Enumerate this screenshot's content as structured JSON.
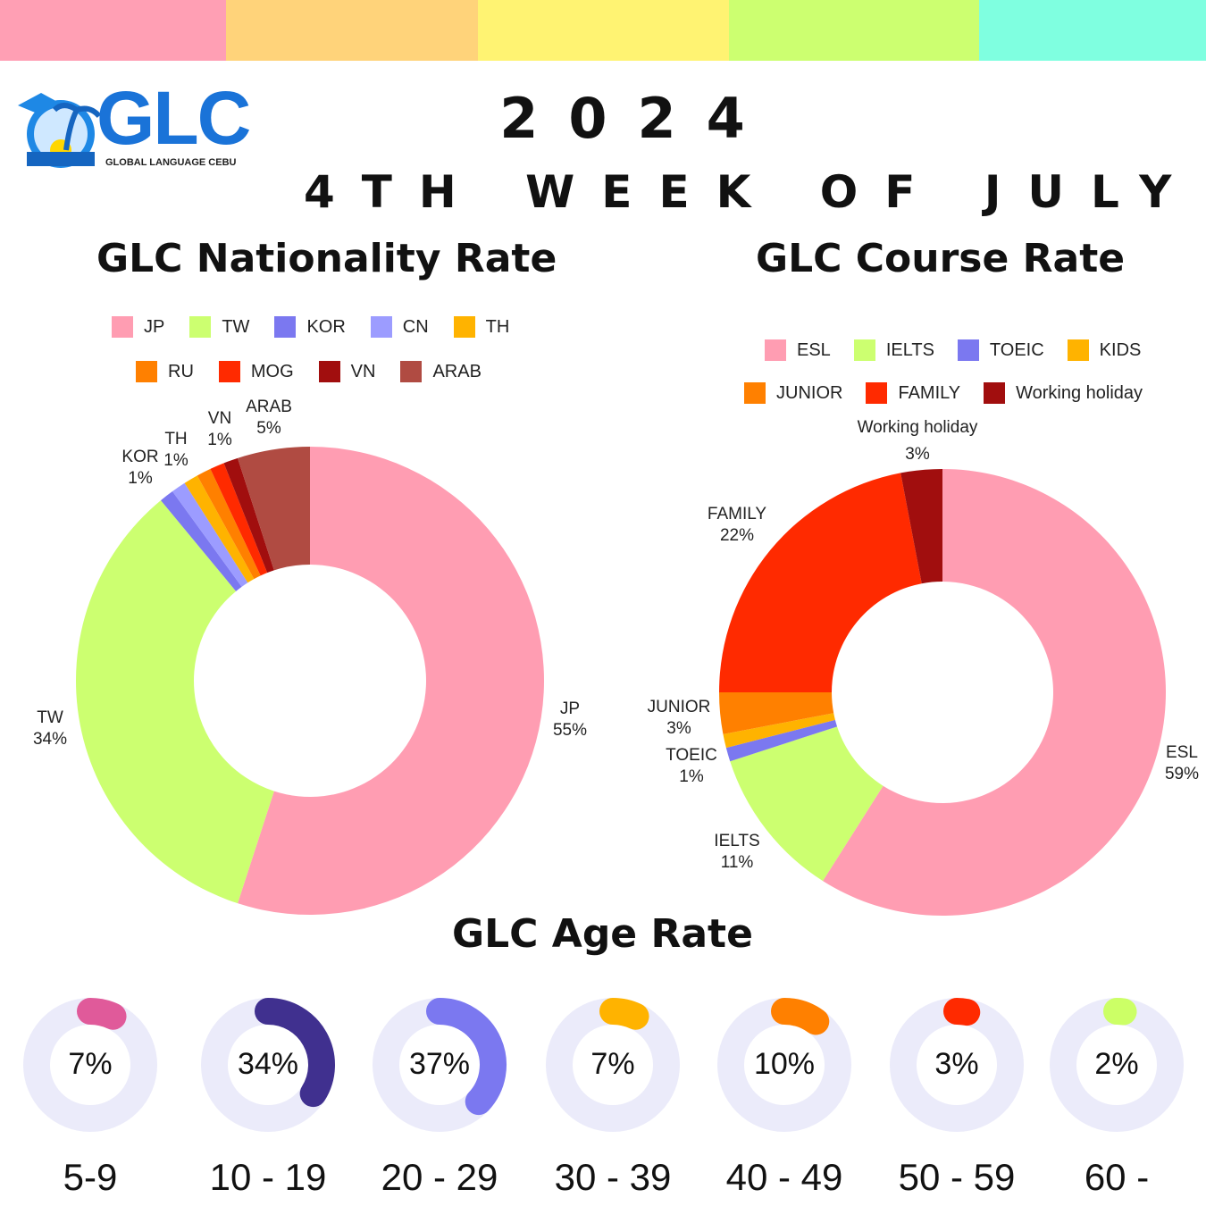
{
  "header": {
    "year": "2024",
    "week": "4TH WEEK OF JULY",
    "logo_text": "GLC",
    "logo_sub": "GLOBAL LANGUAGE CEBU"
  },
  "colors": {
    "top_bar": [
      "#ff9fb4",
      "#ffd37a",
      "#fff372",
      "#ccff70",
      "#7fffe0"
    ],
    "age_track": "#ebebfa"
  },
  "chart_data": [
    {
      "type": "pie",
      "title": "GLC Nationality Rate",
      "donut": true,
      "categories": [
        "JP",
        "TW",
        "KOR",
        "CN",
        "TH",
        "RU",
        "MOG",
        "VN",
        "ARAB"
      ],
      "values": [
        55,
        34,
        1,
        1,
        1,
        1,
        1,
        1,
        5
      ],
      "colors": [
        "#ff9db2",
        "#ccff70",
        "#7b78f0",
        "#9c9cff",
        "#ffb300",
        "#ff8000",
        "#ff2a00",
        "#a10e0e",
        "#b04b42"
      ],
      "labels": [
        {
          "name": "JP",
          "value": "55%"
        },
        {
          "name": "TW",
          "value": "34%"
        },
        {
          "name": "KOR",
          "value": "1%"
        },
        {
          "name": "TH",
          "value": "1%"
        },
        {
          "name": "VN",
          "value": "1%"
        },
        {
          "name": "ARAB",
          "value": "5%"
        }
      ],
      "legend": "top"
    },
    {
      "type": "pie",
      "title": "GLC Course Rate",
      "donut": true,
      "categories": [
        "ESL",
        "IELTS",
        "TOEIC",
        "KIDS",
        "JUNIOR",
        "FAMILY",
        "Working holiday"
      ],
      "values": [
        59,
        11,
        1,
        1,
        3,
        22,
        3
      ],
      "colors": [
        "#ff9db2",
        "#ccff70",
        "#7b78f0",
        "#ffb300",
        "#ff8000",
        "#ff2a00",
        "#a10e0e"
      ],
      "labels": [
        {
          "name": "ESL",
          "value": "59%"
        },
        {
          "name": "IELTS",
          "value": "11%"
        },
        {
          "name": "TOEIC",
          "value": "1%"
        },
        {
          "name": "JUNIOR",
          "value": "3%"
        },
        {
          "name": "FAMILY",
          "value": "22%"
        },
        {
          "name": "Working holiday",
          "value": "3%"
        }
      ],
      "legend": "top"
    },
    {
      "type": "pie",
      "title": "GLC Age Rate",
      "donut": true,
      "categories": [
        "5-9",
        "10 - 19",
        "20 - 29",
        "30 - 39",
        "40 - 49",
        "50 - 59",
        "60 -"
      ],
      "values": [
        7,
        34,
        37,
        7,
        10,
        3,
        2
      ],
      "value_labels": [
        "7%",
        "34%",
        "37%",
        "7%",
        "10%",
        "3%",
        "2%"
      ],
      "colors": [
        "#e05a9a",
        "#40308f",
        "#7b78f0",
        "#ffb300",
        "#ff8000",
        "#ff2a00",
        "#ccff66"
      ]
    }
  ]
}
